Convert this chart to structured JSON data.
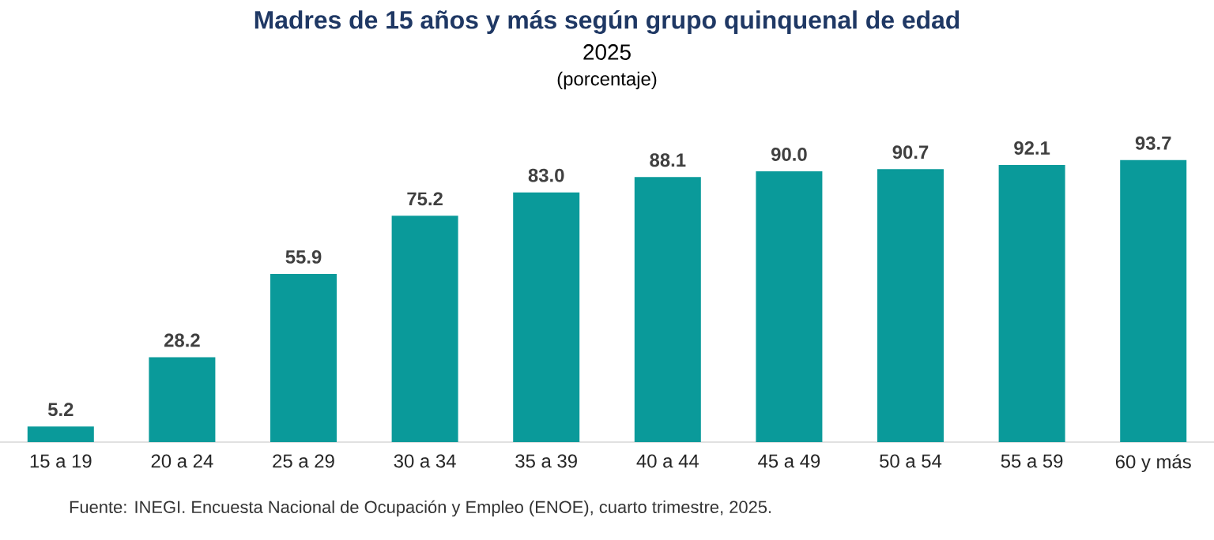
{
  "chart_data": {
    "type": "bar",
    "title": "Madres de 15 años y más según grupo quinquenal de edad",
    "subtitle": "2025",
    "categories": [
      "15 a 19",
      "20 a 24",
      "25 a 29",
      "30 a 34",
      "35 a 39",
      "40 a 44",
      "45 a 49",
      "50 a 54",
      "55 a 59",
      "60 y más"
    ],
    "values": [
      5.2,
      28.2,
      55.9,
      75.2,
      83.0,
      88.1,
      90.0,
      90.7,
      92.1,
      93.7
    ],
    "value_labels": [
      "5.2",
      "28.2",
      "55.9",
      "75.2",
      "83.0",
      "88.1",
      "90.0",
      "90.7",
      "92.1",
      "93.7"
    ],
    "color": "#0a9a9a",
    "annotations": [
      "(porcentaje)",
      "Fuente: INEGI. Encuesta Nacional de Ocupación y Empleo (ENOE), cuarto trimestre, 2025."
    ]
  }
}
